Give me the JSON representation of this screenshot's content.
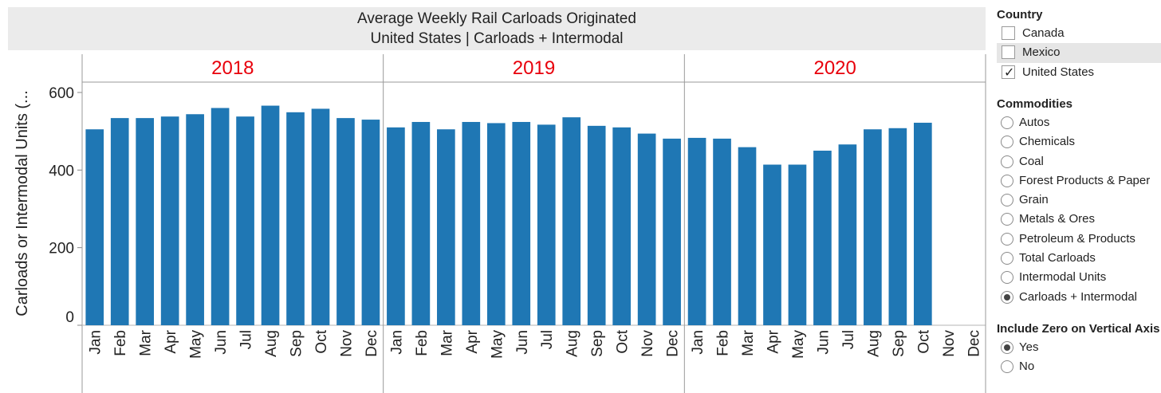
{
  "chart_data": {
    "type": "bar",
    "title": "Average Weekly Rail Carloads Originated",
    "subtitle": "United States | Carloads + Intermodal",
    "ylabel": "Carloads or Intermodal Units (...",
    "ylim": [
      0,
      620
    ],
    "yticks": [
      0,
      200,
      400,
      600
    ],
    "bar_color": "#1f77b4",
    "year_label_color": "#e8000b",
    "panels": [
      {
        "year": "2018",
        "categories": [
          "Jan",
          "Feb",
          "Mar",
          "Apr",
          "May",
          "Jun",
          "Jul",
          "Aug",
          "Sep",
          "Oct",
          "Nov",
          "Dec"
        ],
        "values": [
          505,
          534,
          534,
          538,
          544,
          560,
          538,
          566,
          549,
          558,
          534,
          530
        ]
      },
      {
        "year": "2019",
        "categories": [
          "Jan",
          "Feb",
          "Mar",
          "Apr",
          "May",
          "Jun",
          "Jul",
          "Aug",
          "Sep",
          "Oct",
          "Nov",
          "Dec"
        ],
        "values": [
          510,
          524,
          505,
          524,
          521,
          524,
          517,
          536,
          514,
          510,
          494,
          481
        ]
      },
      {
        "year": "2020",
        "categories": [
          "Jan",
          "Feb",
          "Mar",
          "Apr",
          "May",
          "Jun",
          "Jul",
          "Aug",
          "Sep",
          "Oct",
          "Nov",
          "Dec"
        ],
        "values": [
          483,
          481,
          459,
          414,
          414,
          450,
          466,
          505,
          508,
          522,
          null,
          null
        ]
      }
    ]
  },
  "filters": {
    "country": {
      "title": "Country",
      "options": [
        {
          "label": "Canada",
          "checked": false
        },
        {
          "label": "Mexico",
          "checked": false
        },
        {
          "label": "United States",
          "checked": true
        }
      ]
    },
    "commodities": {
      "title": "Commodities",
      "options": [
        "Autos",
        "Chemicals",
        "Coal",
        "Forest Products & Paper",
        "Grain",
        "Metals & Ores",
        "Petroleum & Products",
        "Total Carloads",
        "Intermodal Units",
        "Carloads + Intermodal"
      ],
      "selected": "Carloads + Intermodal"
    },
    "zero_axis": {
      "title": "Include Zero on Vertical Axis",
      "options": [
        "Yes",
        "No"
      ],
      "selected": "Yes"
    }
  }
}
